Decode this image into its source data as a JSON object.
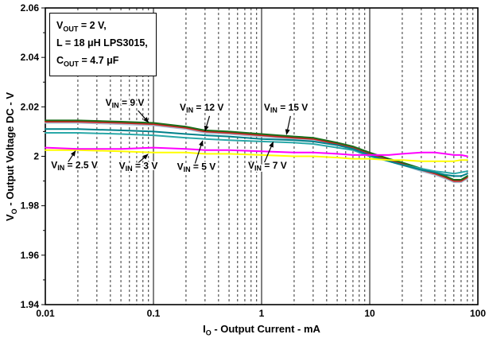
{
  "chart_data": {
    "type": "line",
    "xlabel": "IO - Output Current - mA",
    "ylabel": "VO - Output Voltage DC - V",
    "xlabel_parts": {
      "pre": "I",
      "sub": "O",
      "post": " - Output Current - mA"
    },
    "ylabel_parts": {
      "pre": "V",
      "sub": "O",
      "post": " - Output Voltage DC - V"
    },
    "xscale": "log",
    "xlim": [
      0.01,
      100
    ],
    "ylim": [
      1.94,
      2.06
    ],
    "xticks": [
      0.01,
      0.1,
      1,
      10,
      100
    ],
    "xtick_labels": [
      "0.01",
      "0.1",
      "1",
      "10",
      "100"
    ],
    "yticks": [
      1.94,
      1.96,
      1.98,
      2.0,
      2.02,
      2.04,
      2.06
    ],
    "ytick_labels": [
      "1.94",
      "1.96",
      "1.98",
      "2",
      "2.02",
      "2.04",
      "2.06"
    ],
    "grid": {
      "vertical_minor": "dashed",
      "vertical_major": "solid",
      "horizontal": "none"
    },
    "x": [
      0.01,
      0.02,
      0.05,
      0.1,
      0.2,
      0.3,
      0.5,
      1,
      2,
      3,
      5,
      7,
      10,
      15,
      20,
      30,
      40,
      50,
      60,
      70,
      80
    ],
    "series": [
      {
        "name": "VIN = 12 V",
        "color": "#a8bdd0",
        "values": [
          2.0135,
          2.0135,
          2.013,
          2.0125,
          2.011,
          2.0095,
          2.009,
          2.008,
          2.007,
          2.0065,
          2.0045,
          2.003,
          2.0005,
          1.998,
          1.9965,
          1.994,
          1.9925,
          1.991,
          1.9895,
          1.9895,
          1.991
        ]
      },
      {
        "name": "VIN = 9 V",
        "color": "#cc2222",
        "values": [
          2.014,
          2.014,
          2.0135,
          2.013,
          2.0115,
          2.01,
          2.0095,
          2.0085,
          2.0075,
          2.007,
          2.005,
          2.0035,
          2.001,
          1.9985,
          1.997,
          1.9945,
          1.993,
          1.9915,
          1.99,
          1.99,
          1.9915
        ]
      },
      {
        "name": "VIN = 15 V",
        "color": "#1a6e1a",
        "values": [
          2.0145,
          2.0145,
          2.014,
          2.0135,
          2.012,
          2.0105,
          2.01,
          2.009,
          2.008,
          2.0075,
          2.0055,
          2.004,
          2.0015,
          1.999,
          1.9975,
          1.995,
          1.9935,
          1.992,
          1.9905,
          1.9905,
          1.992
        ]
      },
      {
        "name": "VIN = 5 V",
        "color": "#2aa8a8",
        "values": [
          2.0095,
          2.0095,
          2.009,
          2.0085,
          2.0075,
          2.007,
          2.0065,
          2.006,
          2.0055,
          2.005,
          2.0035,
          2.0025,
          2.0,
          1.998,
          1.9965,
          1.995,
          1.994,
          1.9935,
          1.993,
          1.9935,
          1.994
        ]
      },
      {
        "name": "VIN = 7 V",
        "color": "#00818a",
        "values": [
          2.011,
          2.011,
          2.0105,
          2.01,
          2.009,
          2.0085,
          2.008,
          2.007,
          2.0065,
          2.006,
          2.0045,
          2.003,
          2.0005,
          1.998,
          1.9965,
          1.9945,
          1.9935,
          1.9925,
          1.992,
          1.992,
          1.993
        ]
      },
      {
        "name": "VIN = 3 V",
        "color": "#ffff00",
        "values": [
          2.0025,
          2.0025,
          2.002,
          2.0015,
          2.0015,
          2.001,
          2.001,
          2.0005,
          2.0,
          2.0,
          1.9995,
          1.999,
          1.999,
          1.9985,
          1.9985,
          1.998,
          1.998,
          1.998,
          1.998,
          1.9985,
          1.9985
        ]
      },
      {
        "name": "VIN = 2.5 V",
        "color": "#ff00ff",
        "values": [
          2.0035,
          2.003,
          2.003,
          2.0035,
          2.003,
          2.0025,
          2.0025,
          2.002,
          2.0015,
          2.0015,
          2.001,
          2.0005,
          2.0005,
          2.0005,
          2.001,
          2.0015,
          2.0015,
          2.001,
          2.0005,
          2.0005,
          2.0
        ]
      }
    ],
    "labels": [
      {
        "pre": "V",
        "sub": "IN",
        "post": " = 9 V",
        "tx": 0.036,
        "ty": 2.0205,
        "ax1": 0.072,
        "ay1": 2.0185,
        "ax2": 0.09,
        "ay2": 2.0137
      },
      {
        "pre": "V",
        "sub": "IN",
        "post": " = 12 V",
        "tx": 0.175,
        "ty": 2.0185,
        "ax1": 0.33,
        "ay1": 2.0163,
        "ax2": 0.3,
        "ay2": 2.0102
      },
      {
        "pre": "V",
        "sub": "IN",
        "post": " = 15 V",
        "tx": 1.05,
        "ty": 2.0185,
        "ax1": 1.85,
        "ay1": 2.0163,
        "ax2": 1.7,
        "ay2": 2.0088
      },
      {
        "pre": "V",
        "sub": "IN",
        "post": " = 2.5 V",
        "tx": 0.0113,
        "ty": 1.9952,
        "ax1": 0.016,
        "ay1": 1.9972,
        "ax2": 0.019,
        "ay2": 2.0022
      },
      {
        "pre": "V",
        "sub": "IN",
        "post": " = 3 V",
        "tx": 0.048,
        "ty": 1.9948,
        "ax1": 0.07,
        "ay1": 1.9968,
        "ax2": 0.089,
        "ay2": 2.0008
      },
      {
        "pre": "V",
        "sub": "IN",
        "post": " = 5 V",
        "tx": 0.165,
        "ty": 1.9945,
        "ax1": 0.24,
        "ay1": 1.9965,
        "ax2": 0.285,
        "ay2": 2.0063
      },
      {
        "pre": "V",
        "sub": "IN",
        "post": " = 7 V",
        "tx": 0.75,
        "ty": 1.995,
        "ax1": 1.05,
        "ay1": 1.997,
        "ax2": 1.28,
        "ay2": 2.0058
      }
    ]
  },
  "conditions": {
    "lines": [
      {
        "pre": "V",
        "sub": "OUT",
        "post": " = 2 V,"
      },
      {
        "pre": "L = 18 μH LPS3015,",
        "sub": "",
        "post": ""
      },
      {
        "pre": "C",
        "sub": "OUT",
        "post": " = 4.7 μF"
      }
    ]
  }
}
